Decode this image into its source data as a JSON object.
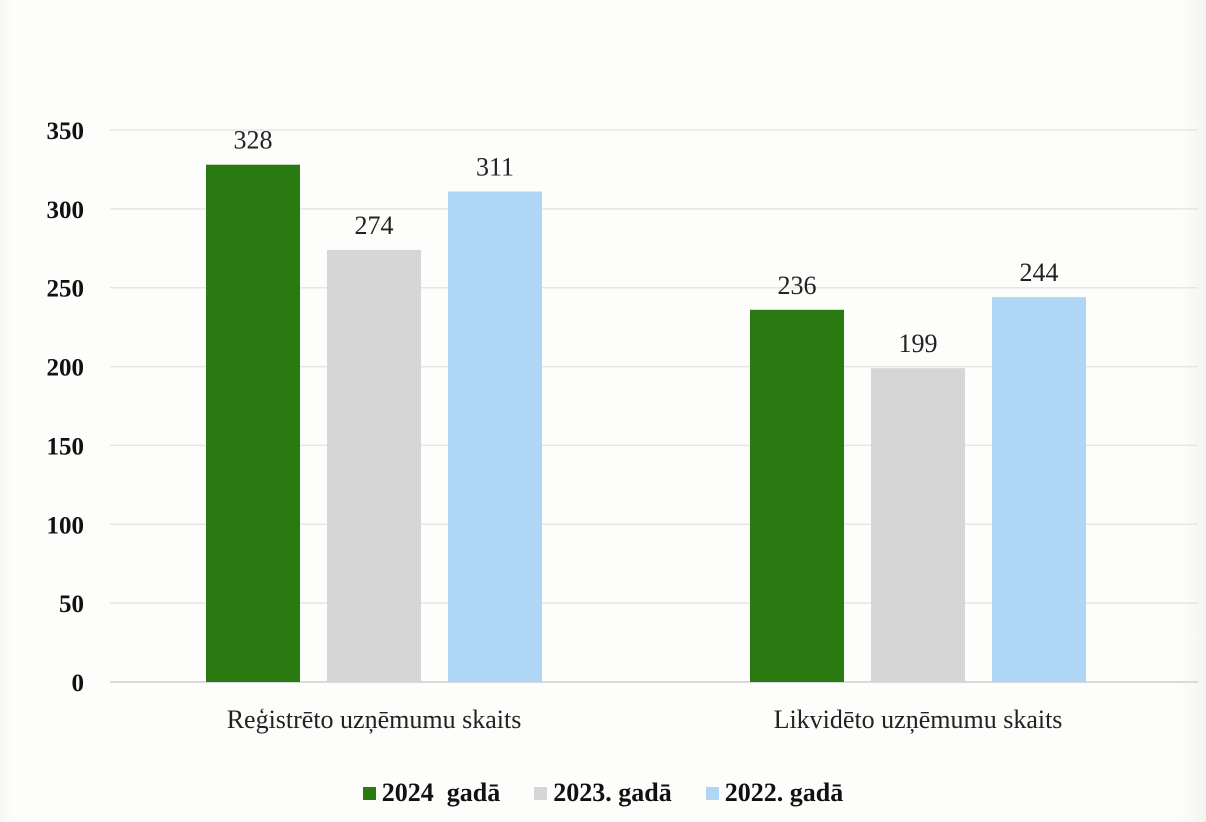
{
  "chart_data": {
    "type": "bar",
    "categories": [
      "Reģistrēto uzņēmumu skaits",
      "Likvidēto uzņēmumu skaits"
    ],
    "series": [
      {
        "name": "2024  gadā",
        "values": [
          328,
          236
        ],
        "color": "#2a7a12"
      },
      {
        "name": "2023. gadā",
        "values": [
          274,
          199
        ],
        "color": "#d6d6d6"
      },
      {
        "name": "2022. gadā",
        "values": [
          311,
          244
        ],
        "color": "#b0d6f6"
      }
    ],
    "title": "",
    "xlabel": "",
    "ylabel": "",
    "ylim": [
      0,
      350
    ],
    "yticks": [
      0,
      50,
      100,
      150,
      200,
      250,
      300,
      350
    ],
    "grid": true,
    "legend": "bottom",
    "data_labels": true
  }
}
